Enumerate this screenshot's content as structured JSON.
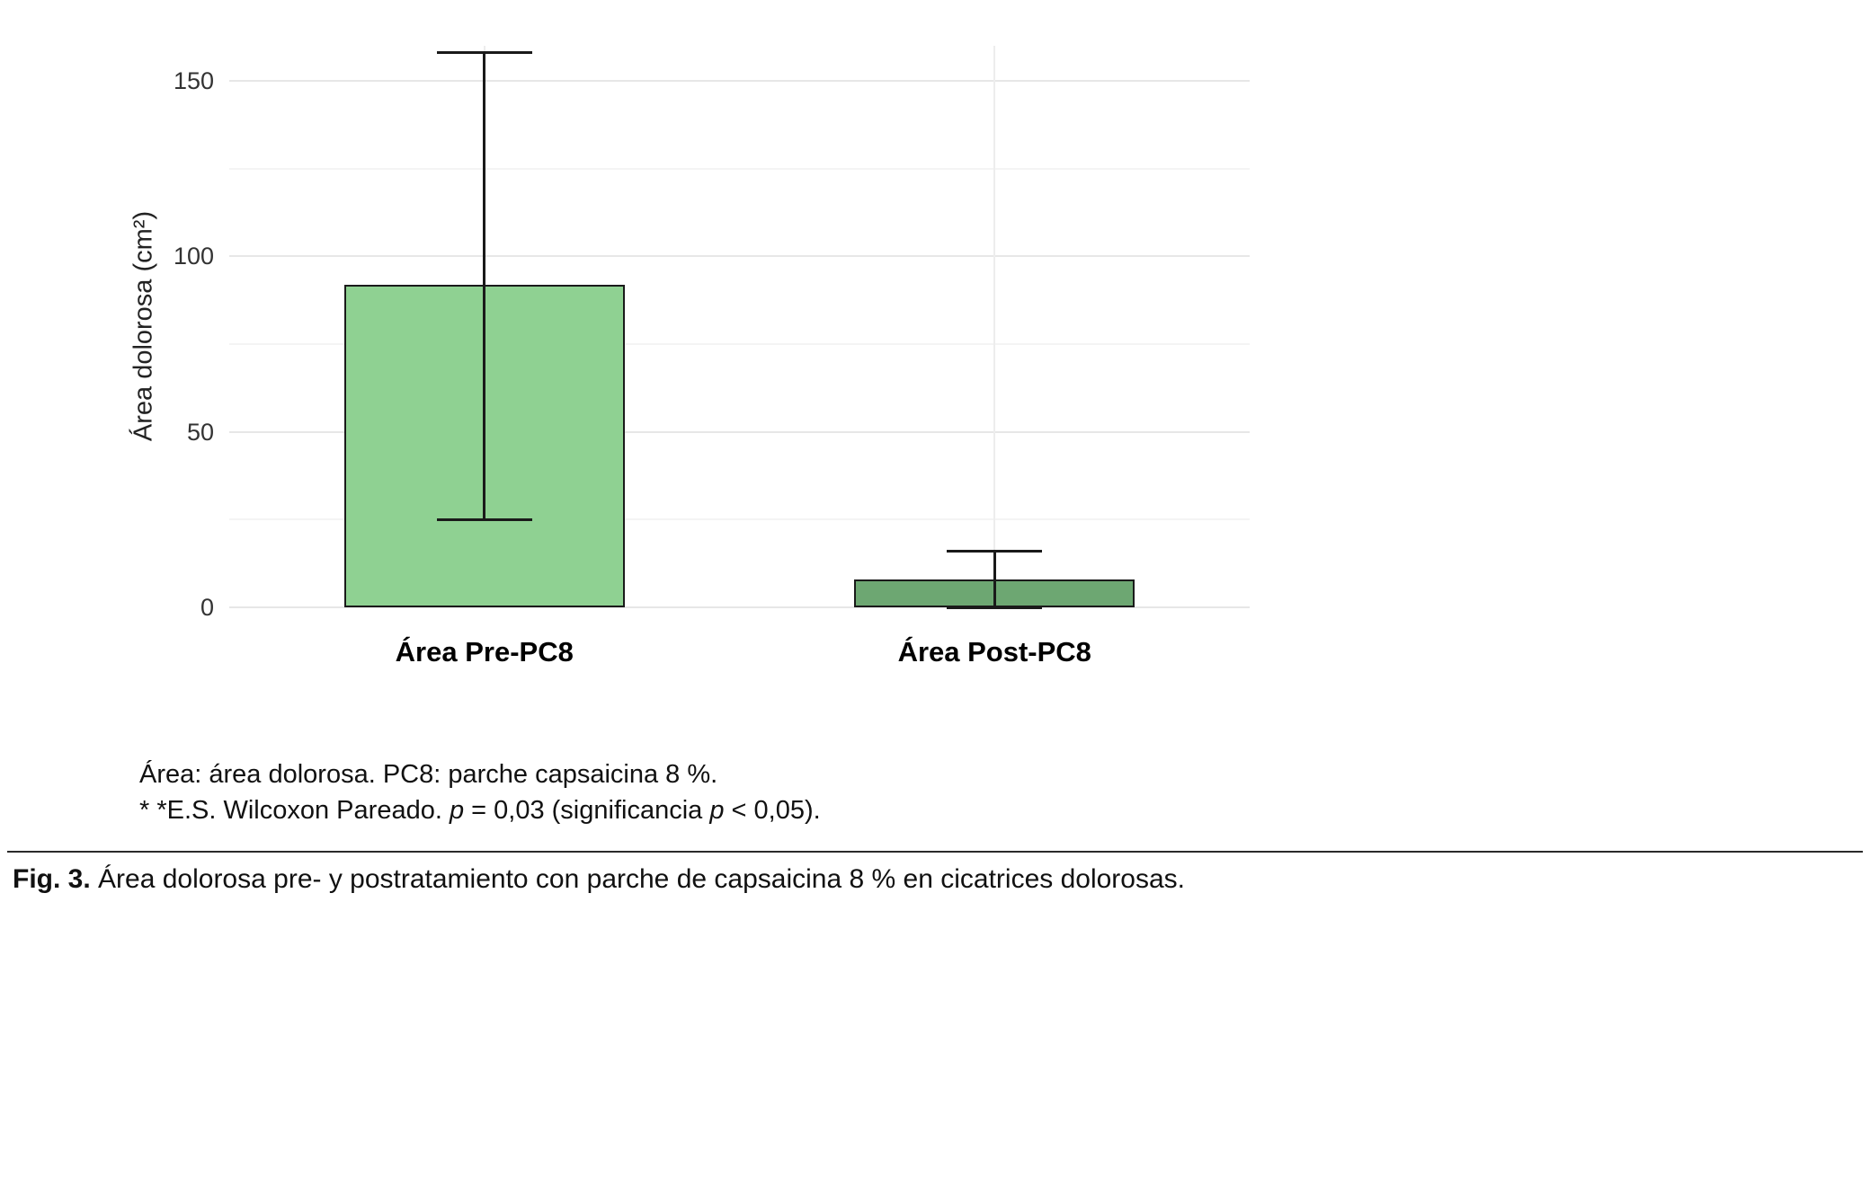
{
  "chart_data": {
    "type": "bar",
    "title": "",
    "xlabel": "",
    "ylabel": "Área dolorosa (cm²)",
    "categories": [
      "Área Pre-PC8",
      "Área Post-PC8"
    ],
    "values": [
      92,
      8
    ],
    "error_low": [
      25,
      0
    ],
    "error_high": [
      158,
      16
    ],
    "bar_colors": [
      "#8FD192",
      "#6DA772"
    ],
    "bar_border_color": "#1a1a1a",
    "ylim": [
      0,
      160
    ],
    "yticks": [
      0,
      50,
      100,
      150
    ],
    "yticks_minor": [
      25,
      75,
      125
    ],
    "grid": true,
    "legend": "none"
  },
  "footnotes": {
    "line1": "Área: área dolorosa. PC8: parche capsaicina 8 %.",
    "line2_segments": [
      {
        "text": "* *E.S. Wilcoxon Pareado. ",
        "italic": false
      },
      {
        "text": "p",
        "italic": true
      },
      {
        "text": " = 0,03 (significancia ",
        "italic": false
      },
      {
        "text": "p",
        "italic": true
      },
      {
        "text": " < 0,05).",
        "italic": false
      }
    ]
  },
  "caption": {
    "label": "Fig. 3.",
    "text": " Área dolorosa pre- y postratamiento con parche de capsaicina 8 % en cicatrices dolorosas."
  }
}
